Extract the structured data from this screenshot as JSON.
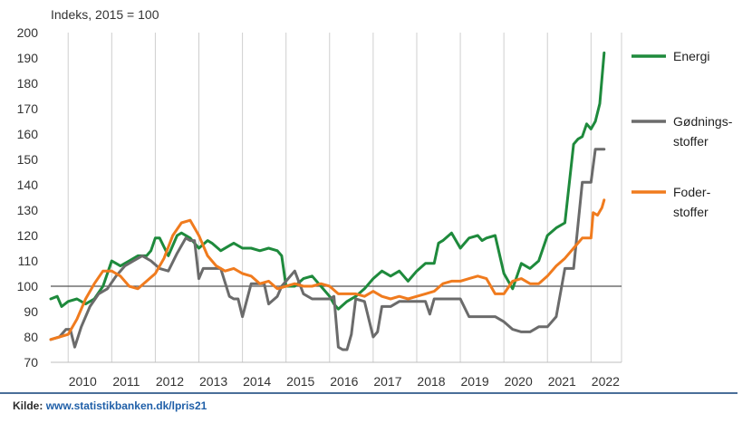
{
  "chart_data": {
    "type": "line",
    "ylabel": "Indeks, 2015 = 100",
    "ylim": [
      70,
      200
    ],
    "yticks": [
      70,
      80,
      90,
      100,
      110,
      120,
      130,
      140,
      150,
      160,
      170,
      180,
      190,
      200
    ],
    "xlim": [
      2009.6,
      2022.7
    ],
    "xticks": [
      "2010",
      "2011",
      "2012",
      "2013",
      "2014",
      "2015",
      "2016",
      "2017",
      "2018",
      "2019",
      "2020",
      "2021",
      "2022"
    ],
    "reference_line": 100,
    "grid": "vertical",
    "legend_position": "right",
    "series": [
      {
        "name": "Energi",
        "color": "#1e8a3c",
        "x": [
          2009.6,
          2009.75,
          2009.85,
          2010.0,
          2010.2,
          2010.4,
          2010.6,
          2010.8,
          2011.0,
          2011.2,
          2011.4,
          2011.6,
          2011.8,
          2011.9,
          2012.0,
          2012.1,
          2012.3,
          2012.5,
          2012.6,
          2012.8,
          2013.0,
          2013.2,
          2013.3,
          2013.5,
          2013.7,
          2013.8,
          2014.0,
          2014.2,
          2014.4,
          2014.6,
          2014.8,
          2014.9,
          2015.0,
          2015.2,
          2015.4,
          2015.6,
          2015.8,
          2016.0,
          2016.1,
          2016.2,
          2016.4,
          2016.6,
          2016.8,
          2017.0,
          2017.2,
          2017.4,
          2017.6,
          2017.8,
          2018.0,
          2018.2,
          2018.4,
          2018.5,
          2018.6,
          2018.8,
          2019.0,
          2019.2,
          2019.4,
          2019.5,
          2019.6,
          2019.8,
          2020.0,
          2020.2,
          2020.4,
          2020.6,
          2020.8,
          2021.0,
          2021.2,
          2021.4,
          2021.6,
          2021.7,
          2021.8,
          2021.9,
          2022.0,
          2022.1,
          2022.2,
          2022.3
        ],
        "values": [
          95,
          96,
          92,
          94,
          95,
          93,
          95,
          100,
          110,
          108,
          110,
          112,
          112,
          114,
          119,
          119,
          112,
          120,
          121,
          119,
          115,
          118,
          117,
          114,
          116,
          117,
          115,
          115,
          114,
          115,
          114,
          112,
          100,
          100,
          103,
          104,
          100,
          96,
          93,
          91,
          94,
          96,
          99,
          103,
          106,
          104,
          106,
          102,
          106,
          109,
          109,
          117,
          118,
          121,
          115,
          119,
          120,
          118,
          119,
          120,
          105,
          99,
          109,
          107,
          110,
          120,
          123,
          125,
          156,
          158,
          159,
          164,
          162,
          165,
          172,
          192
        ]
      },
      {
        "name": "Gødningsstoffer",
        "color": "#6b6b6b",
        "x": [
          2009.6,
          2009.8,
          2009.95,
          2010.05,
          2010.15,
          2010.3,
          2010.5,
          2010.7,
          2010.9,
          2011.1,
          2011.3,
          2011.5,
          2011.7,
          2011.9,
          2012.1,
          2012.3,
          2012.5,
          2012.7,
          2012.8,
          2012.9,
          2013.0,
          2013.1,
          2013.3,
          2013.5,
          2013.7,
          2013.8,
          2013.9,
          2014.0,
          2014.2,
          2014.4,
          2014.5,
          2014.6,
          2014.8,
          2014.9,
          2015.0,
          2015.2,
          2015.4,
          2015.6,
          2015.8,
          2016.0,
          2016.1,
          2016.2,
          2016.3,
          2016.4,
          2016.5,
          2016.6,
          2016.8,
          2017.0,
          2017.1,
          2017.2,
          2017.4,
          2017.6,
          2017.8,
          2018.0,
          2018.2,
          2018.3,
          2018.4,
          2018.6,
          2018.8,
          2019.0,
          2019.2,
          2019.4,
          2019.6,
          2019.8,
          2020.0,
          2020.2,
          2020.4,
          2020.6,
          2020.8,
          2021.0,
          2021.2,
          2021.4,
          2021.5,
          2021.6,
          2021.8,
          2022.0,
          2022.1,
          2022.2,
          2022.3
        ],
        "values": [
          79,
          80,
          83,
          83,
          76,
          84,
          92,
          97,
          99,
          104,
          108,
          110,
          112,
          110,
          107,
          106,
          113,
          119,
          118,
          118,
          103,
          107,
          107,
          107,
          96,
          95,
          95,
          88,
          101,
          101,
          101,
          93,
          96,
          100,
          102,
          106,
          97,
          95,
          95,
          95,
          96,
          76,
          75,
          75,
          81,
          95,
          94,
          80,
          82,
          92,
          92,
          94,
          94,
          94,
          94,
          89,
          95,
          95,
          95,
          95,
          88,
          88,
          88,
          88,
          86,
          83,
          82,
          82,
          84,
          84,
          88,
          107,
          107,
          107,
          141,
          141,
          154,
          154,
          154
        ]
      },
      {
        "name": "Foderstoffer",
        "color": "#f07b1e",
        "x": [
          2009.6,
          2009.8,
          2010.0,
          2010.2,
          2010.4,
          2010.6,
          2010.8,
          2011.0,
          2011.2,
          2011.4,
          2011.6,
          2011.8,
          2012.0,
          2012.2,
          2012.4,
          2012.6,
          2012.8,
          2013.0,
          2013.2,
          2013.4,
          2013.6,
          2013.8,
          2014.0,
          2014.2,
          2014.4,
          2014.6,
          2014.8,
          2015.0,
          2015.2,
          2015.4,
          2015.6,
          2015.8,
          2016.0,
          2016.2,
          2016.4,
          2016.6,
          2016.8,
          2017.0,
          2017.2,
          2017.4,
          2017.6,
          2017.8,
          2018.0,
          2018.2,
          2018.4,
          2018.6,
          2018.8,
          2019.0,
          2019.2,
          2019.4,
          2019.6,
          2019.8,
          2020.0,
          2020.2,
          2020.4,
          2020.6,
          2020.8,
          2021.0,
          2021.2,
          2021.4,
          2021.6,
          2021.8,
          2022.0,
          2022.05,
          2022.15,
          2022.25,
          2022.3
        ],
        "values": [
          79,
          80,
          81,
          87,
          95,
          101,
          106,
          106,
          104,
          100,
          99,
          102,
          105,
          111,
          120,
          125,
          126,
          120,
          112,
          108,
          106,
          107,
          105,
          104,
          101,
          102,
          99,
          100,
          101,
          100,
          100,
          101,
          100,
          97,
          97,
          97,
          96,
          98,
          96,
          95,
          96,
          95,
          96,
          97,
          98,
          101,
          102,
          102,
          103,
          104,
          103,
          97,
          97,
          102,
          103,
          101,
          101,
          104,
          108,
          111,
          115,
          119,
          119,
          129,
          128,
          131,
          134
        ]
      }
    ]
  },
  "source": {
    "label": "Kilde:",
    "link": "www.statistikbanken.dk/lpris21"
  }
}
